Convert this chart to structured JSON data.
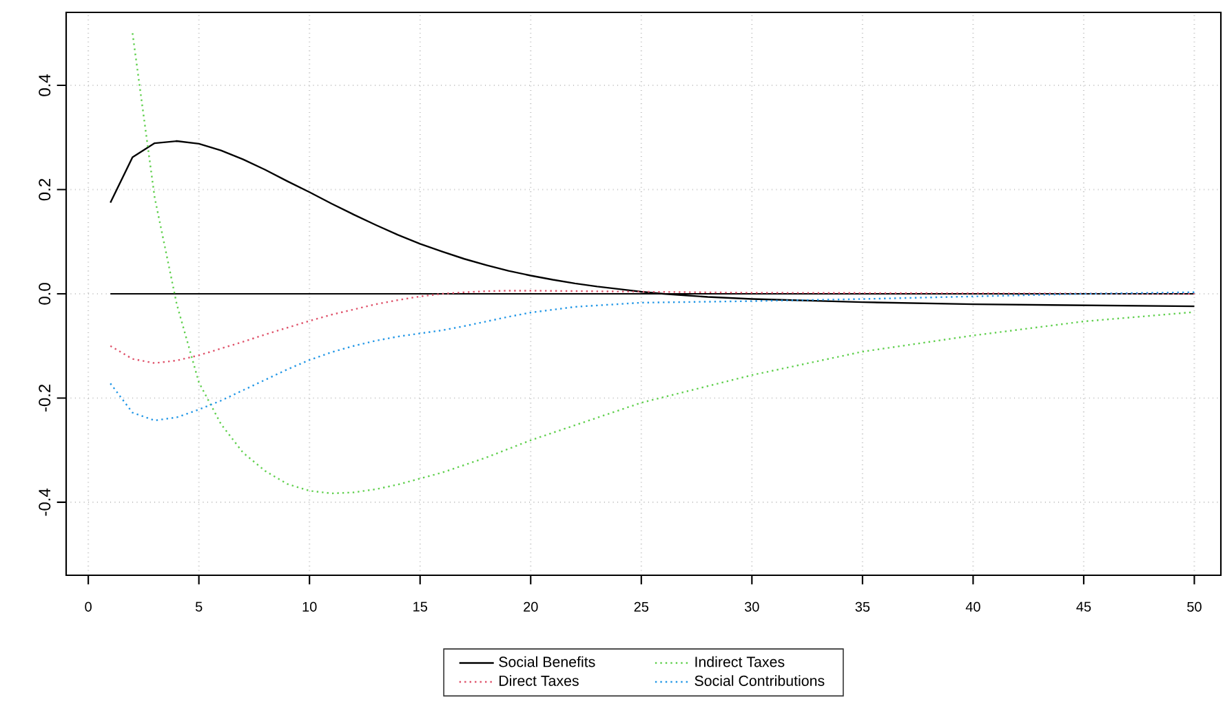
{
  "chart_data": {
    "type": "line",
    "x": [
      1,
      2,
      3,
      4,
      5,
      6,
      7,
      8,
      9,
      10,
      11,
      12,
      13,
      14,
      15,
      16,
      17,
      18,
      19,
      20,
      21,
      22,
      23,
      24,
      25,
      26,
      27,
      28,
      29,
      30,
      35,
      40,
      45,
      50
    ],
    "series": [
      {
        "name": "Social Benefits",
        "color": "#000000",
        "line_style": "solid",
        "values": [
          0.175,
          0.262,
          0.289,
          0.293,
          0.288,
          0.275,
          0.258,
          0.238,
          0.216,
          0.195,
          0.173,
          0.152,
          0.132,
          0.113,
          0.096,
          0.081,
          0.067,
          0.055,
          0.044,
          0.035,
          0.027,
          0.02,
          0.014,
          0.009,
          0.004,
          0.0,
          -0.003,
          -0.006,
          -0.008,
          -0.01,
          -0.016,
          -0.02,
          -0.022,
          -0.024
        ]
      },
      {
        "name": "Direct Taxes",
        "color": "#df536b",
        "line_style": "dotted",
        "x": [
          1,
          2,
          3,
          4,
          5,
          6,
          7,
          8,
          9,
          10,
          11,
          12,
          13,
          14,
          15,
          16,
          17,
          18,
          19,
          20,
          25,
          30,
          40,
          50
        ],
        "values": [
          -0.1,
          -0.125,
          -0.133,
          -0.128,
          -0.118,
          -0.105,
          -0.092,
          -0.078,
          -0.065,
          -0.052,
          -0.04,
          -0.03,
          -0.02,
          -0.012,
          -0.005,
          0.0,
          0.003,
          0.005,
          0.006,
          0.006,
          0.004,
          0.002,
          0.001,
          0.0
        ]
      },
      {
        "name": "Indirect Taxes",
        "color": "#61d04f",
        "line_style": "dotted",
        "x": [
          2,
          3,
          4,
          5,
          6,
          7,
          8,
          9,
          10,
          11,
          12,
          13,
          14,
          16,
          18,
          20,
          25,
          30,
          35,
          40,
          45,
          50
        ],
        "values": [
          0.5,
          0.185,
          -0.02,
          -0.17,
          -0.25,
          -0.305,
          -0.34,
          -0.365,
          -0.378,
          -0.383,
          -0.381,
          -0.375,
          -0.366,
          -0.343,
          -0.314,
          -0.281,
          -0.209,
          -0.156,
          -0.111,
          -0.08,
          -0.053,
          -0.035
        ]
      },
      {
        "name": "Social Contributions",
        "color": "#2297e6",
        "line_style": "dotted",
        "x": [
          1,
          2,
          3,
          4,
          5,
          6,
          7,
          8,
          9,
          10,
          11,
          12,
          13,
          14,
          15,
          16,
          17,
          18,
          19,
          20,
          22,
          25,
          30,
          35,
          40,
          45,
          50
        ],
        "values": [
          -0.172,
          -0.228,
          -0.243,
          -0.237,
          -0.222,
          -0.205,
          -0.185,
          -0.165,
          -0.145,
          -0.127,
          -0.112,
          -0.1,
          -0.09,
          -0.082,
          -0.076,
          -0.07,
          -0.062,
          -0.053,
          -0.044,
          -0.036,
          -0.025,
          -0.017,
          -0.014,
          -0.01,
          -0.005,
          0.0,
          0.003
        ]
      }
    ],
    "ref_lines": [
      {
        "axis": "y",
        "value": 0,
        "color": "#000000",
        "line_style": "solid"
      }
    ],
    "xlim": [
      -1,
      51.2
    ],
    "ylim": [
      -0.54,
      0.54
    ],
    "xticks": [
      0,
      5,
      10,
      15,
      20,
      25,
      30,
      35,
      40,
      45,
      50
    ],
    "yticks": [
      {
        "value": -0.4,
        "label": "-0.4"
      },
      {
        "value": -0.2,
        "label": "-0.2"
      },
      {
        "value": 0,
        "label": "0.0"
      },
      {
        "value": 0.2,
        "label": "0.2"
      },
      {
        "value": 0.4,
        "label": "0.4"
      }
    ],
    "grid": true,
    "legend": "bottom",
    "marker": "none"
  }
}
